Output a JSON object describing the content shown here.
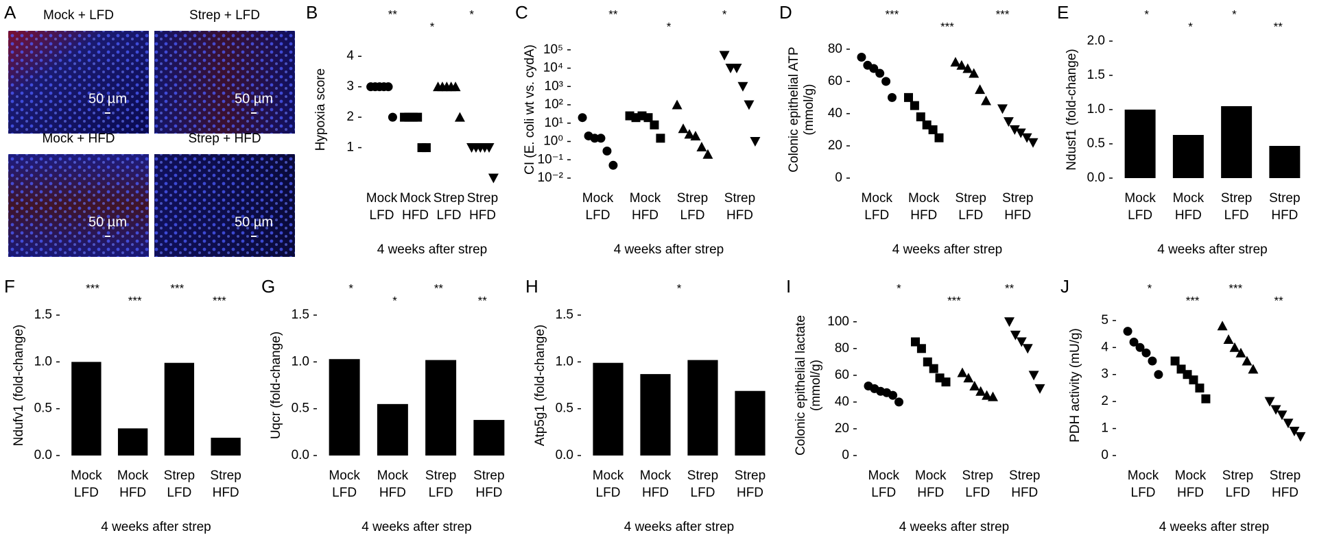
{
  "panel_a": {
    "label": "A",
    "images": [
      {
        "caption": "Mock + LFD",
        "scale_bar": "50 µm"
      },
      {
        "caption": "Strep + LFD",
        "scale_bar": "50 µm"
      },
      {
        "caption": "Mock + HFD",
        "scale_bar": "50 µm"
      },
      {
        "caption": "Strep + HFD",
        "scale_bar": "50 µm"
      }
    ]
  },
  "chart_data": [
    {
      "label": "B",
      "type": "dot",
      "ylabel": [
        "Hypoxia score"
      ],
      "xlabel": "4 weeks after strep",
      "categories": [
        [
          "Mock",
          "LFD"
        ],
        [
          "Mock",
          "HFD"
        ],
        [
          "Strep",
          "LFD"
        ],
        [
          "Strep",
          "HFD"
        ]
      ],
      "values": [
        [
          3,
          3,
          3,
          3,
          3,
          2
        ],
        [
          2,
          2,
          2,
          2,
          1,
          1
        ],
        [
          3,
          3,
          3,
          3,
          3,
          2
        ],
        [
          1,
          1,
          1,
          1,
          1,
          0
        ]
      ],
      "markers": [
        "circle",
        "square",
        "triangle-up",
        "triangle-down"
      ],
      "color": "#000000",
      "ylim": [
        0,
        4.5
      ],
      "yticks": [
        1,
        2,
        3,
        4
      ],
      "annotations": [
        "**",
        "*",
        "*"
      ]
    },
    {
      "label": "C",
      "type": "dot",
      "ylabel": [
        "CI (E. coli wt vs. cydA)"
      ],
      "xlabel": "4 weeks after strep",
      "categories": [
        [
          "Mock",
          "LFD"
        ],
        [
          "Mock",
          "HFD"
        ],
        [
          "Strep",
          "LFD"
        ],
        [
          "Strep",
          "HFD"
        ]
      ],
      "values": [
        [
          20,
          2,
          1.5,
          1.5,
          0.3,
          0.05
        ],
        [
          25,
          20,
          25,
          20,
          8,
          1.5
        ],
        [
          100,
          5,
          2.5,
          2,
          0.5,
          0.2
        ],
        [
          50000,
          10000,
          10000,
          1000,
          100,
          1
        ]
      ],
      "markers": [
        "circle",
        "square",
        "triangle-up",
        "triangle-down"
      ],
      "color": "#000000",
      "log_scale": true,
      "ylim": [
        0.01,
        300000
      ],
      "yticks": [
        {
          "value": 0.01,
          "label": "10⁻²"
        },
        {
          "value": 0.1,
          "label": "10⁻¹"
        },
        {
          "value": 1,
          "label": "10⁰"
        },
        {
          "value": 10,
          "label": "10¹"
        },
        {
          "value": 100,
          "label": "10²"
        },
        {
          "value": 1000,
          "label": "10³"
        },
        {
          "value": 10000,
          "label": "10⁴"
        },
        {
          "value": 100000,
          "label": "10⁵"
        }
      ],
      "annotations": [
        "**",
        "*",
        "*"
      ]
    },
    {
      "label": "D",
      "type": "dot",
      "ylabel": [
        "Colonic epithelial ATP",
        "(mmol/g)"
      ],
      "xlabel": "4 weeks after strep",
      "categories": [
        [
          "Mock",
          "LFD"
        ],
        [
          "Mock",
          "HFD"
        ],
        [
          "Strep",
          "LFD"
        ],
        [
          "Strep",
          "HFD"
        ]
      ],
      "values": [
        [
          75,
          70,
          68,
          65,
          60,
          50
        ],
        [
          50,
          45,
          38,
          33,
          30,
          25
        ],
        [
          72,
          70,
          68,
          65,
          55,
          48
        ],
        [
          43,
          35,
          30,
          28,
          25,
          22
        ]
      ],
      "markers": [
        "circle",
        "square",
        "triangle-up",
        "triangle-down"
      ],
      "color": "#000000",
      "ylim": [
        0,
        85
      ],
      "yticks": [
        0,
        20,
        40,
        60,
        80
      ],
      "annotations": [
        "***",
        "***",
        "***"
      ]
    },
    {
      "label": "E",
      "type": "bar",
      "ylabel": [
        "Ndusf1 (fold-change)"
      ],
      "xlabel": "4 weeks after strep",
      "categories": [
        [
          "Mock",
          "LFD"
        ],
        [
          "Mock",
          "HFD"
        ],
        [
          "Strep",
          "LFD"
        ],
        [
          "Strep",
          "HFD"
        ]
      ],
      "values": [
        1.0,
        0.63,
        1.05,
        0.47
      ],
      "color": "#000000",
      "ylim": [
        0,
        2.0
      ],
      "yticks": [
        {
          "value": 0,
          "label": "0.0"
        },
        0.5,
        {
          "value": 1,
          "label": "1.0"
        },
        1.5,
        {
          "value": 2,
          "label": "2.0"
        }
      ],
      "annotations": [
        "*",
        "*",
        "*",
        "**"
      ]
    },
    {
      "label": "F",
      "type": "bar",
      "ylabel": [
        "Ndufv1 (fold-change)"
      ],
      "xlabel": "4 weeks after strep",
      "categories": [
        [
          "Mock",
          "LFD"
        ],
        [
          "Mock",
          "HFD"
        ],
        [
          "Strep",
          "LFD"
        ],
        [
          "Strep",
          "HFD"
        ]
      ],
      "values": [
        1.0,
        0.29,
        0.99,
        0.19
      ],
      "color": "#000000",
      "ylim": [
        0,
        1.5
      ],
      "yticks": [
        {
          "value": 0,
          "label": "0.0"
        },
        0.5,
        {
          "value": 1,
          "label": "1.0"
        },
        1.5
      ],
      "annotations": [
        "***",
        "***",
        "***",
        "***"
      ]
    },
    {
      "label": "G",
      "type": "bar",
      "ylabel": [
        "Uqcr (fold-change)"
      ],
      "xlabel": "4 weeks after strep",
      "categories": [
        [
          "Mock",
          "LFD"
        ],
        [
          "Mock",
          "HFD"
        ],
        [
          "Strep",
          "LFD"
        ],
        [
          "Strep",
          "HFD"
        ]
      ],
      "values": [
        1.03,
        0.55,
        1.02,
        0.38
      ],
      "color": "#000000",
      "ylim": [
        0,
        1.5
      ],
      "yticks": [
        {
          "value": 0,
          "label": "0.0"
        },
        0.5,
        {
          "value": 1,
          "label": "1.0"
        },
        1.5
      ],
      "annotations": [
        "*",
        "*",
        "**",
        "**"
      ]
    },
    {
      "label": "H",
      "type": "bar",
      "ylabel": [
        "Atp5g1 (fold-change)"
      ],
      "xlabel": "4 weeks after strep",
      "categories": [
        [
          "Mock",
          "LFD"
        ],
        [
          "Mock",
          "HFD"
        ],
        [
          "Strep",
          "LFD"
        ],
        [
          "Strep",
          "HFD"
        ]
      ],
      "values": [
        0.99,
        0.87,
        1.02,
        0.69
      ],
      "color": "#000000",
      "ylim": [
        0,
        1.5
      ],
      "yticks": [
        {
          "value": 0,
          "label": "0.0"
        },
        0.5,
        {
          "value": 1,
          "label": "1.0"
        },
        1.5
      ],
      "annotations": [
        "*"
      ]
    },
    {
      "label": "I",
      "type": "dot",
      "ylabel": [
        "Colonic epithelial lactate",
        "(mmol/g)"
      ],
      "xlabel": "4 weeks after strep",
      "categories": [
        [
          "Mock",
          "LFD"
        ],
        [
          "Mock",
          "HFD"
        ],
        [
          "Strep",
          "LFD"
        ],
        [
          "Strep",
          "HFD"
        ]
      ],
      "values": [
        [
          52,
          50,
          48,
          47,
          45,
          40
        ],
        [
          85,
          80,
          70,
          65,
          58,
          55
        ],
        [
          62,
          58,
          52,
          48,
          45,
          44
        ],
        [
          100,
          90,
          85,
          80,
          60,
          50
        ]
      ],
      "markers": [
        "circle",
        "square",
        "triangle-up",
        "triangle-down"
      ],
      "color": "#000000",
      "ylim": [
        0,
        105
      ],
      "yticks": [
        0,
        20,
        40,
        60,
        80,
        100
      ],
      "annotations": [
        "*",
        "***",
        "**"
      ]
    },
    {
      "label": "J",
      "type": "dot",
      "ylabel": [
        "PDH activity (mU/g)"
      ],
      "xlabel": "4 weeks after strep",
      "categories": [
        [
          "Mock",
          "LFD"
        ],
        [
          "Mock",
          "HFD"
        ],
        [
          "Strep",
          "LFD"
        ],
        [
          "Strep",
          "HFD"
        ]
      ],
      "values": [
        [
          4.6,
          4.2,
          4.0,
          3.8,
          3.5,
          3.0
        ],
        [
          3.5,
          3.2,
          3.0,
          2.8,
          2.5,
          2.1
        ],
        [
          4.8,
          4.3,
          4.0,
          3.8,
          3.5,
          3.2
        ],
        [
          2.0,
          1.7,
          1.5,
          1.2,
          0.9,
          0.7
        ]
      ],
      "markers": [
        "circle",
        "square",
        "triangle-up",
        "triangle-down"
      ],
      "color": "#000000",
      "ylim": [
        0,
        5.2
      ],
      "yticks": [
        0,
        1,
        2,
        3,
        4,
        5
      ],
      "annotations": [
        "*",
        "***",
        "***",
        "**"
      ]
    }
  ]
}
